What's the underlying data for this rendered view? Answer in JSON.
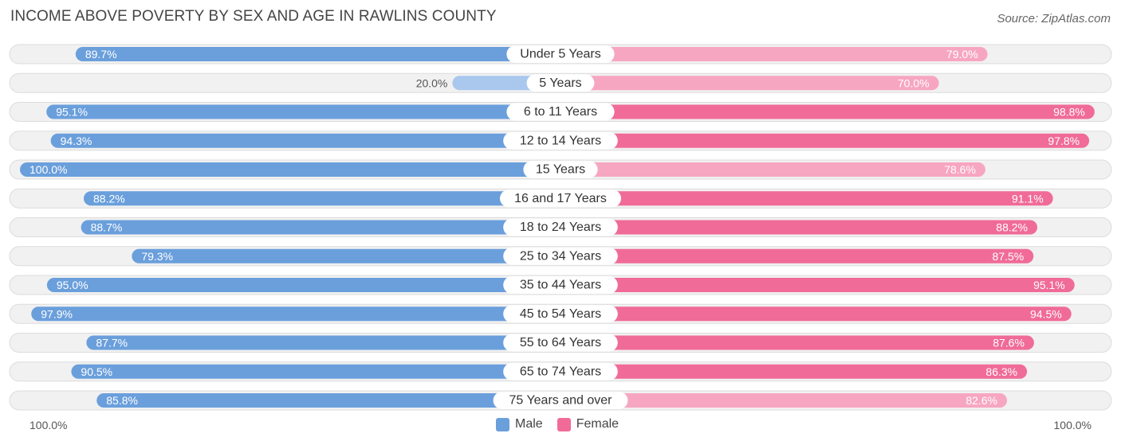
{
  "title": "INCOME ABOVE POVERTY BY SEX AND AGE IN RAWLINS COUNTY",
  "source": "Source: ZipAtlas.com",
  "axis": {
    "left_label": "100.0%",
    "right_label": "100.0%"
  },
  "legend": [
    {
      "label": "Male",
      "color": "#6a9fdc"
    },
    {
      "label": "Female",
      "color": "#f06b98"
    }
  ],
  "colors": {
    "male_strong": "#6a9fdc",
    "male_light": "#aac8ee",
    "female_strong": "#f06b98",
    "female_light": "#f7a6c2",
    "track": "#f1f1f1",
    "track_border": "#dcdcdc"
  },
  "chart_data": {
    "type": "bar",
    "orientation": "horizontal-diverging",
    "title": "INCOME ABOVE POVERTY BY SEX AND AGE IN RAWLINS COUNTY",
    "xlim": [
      0,
      100
    ],
    "unit": "%",
    "categories": [
      "Under 5 Years",
      "5 Years",
      "6 to 11 Years",
      "12 to 14 Years",
      "15 Years",
      "16 and 17 Years",
      "18 to 24 Years",
      "25 to 34 Years",
      "35 to 44 Years",
      "45 to 54 Years",
      "55 to 64 Years",
      "65 to 74 Years",
      "75 Years and over"
    ],
    "series": [
      {
        "name": "Male",
        "values": [
          89.7,
          20.0,
          95.1,
          94.3,
          100.0,
          88.2,
          88.7,
          79.3,
          95.0,
          97.9,
          87.7,
          90.5,
          85.8
        ],
        "labels": [
          "89.7%",
          "20.0%",
          "95.1%",
          "94.3%",
          "100.0%",
          "88.2%",
          "88.7%",
          "79.3%",
          "95.0%",
          "97.9%",
          "87.7%",
          "90.5%",
          "85.8%"
        ]
      },
      {
        "name": "Female",
        "values": [
          79.0,
          70.0,
          98.8,
          97.8,
          78.6,
          91.1,
          88.2,
          87.5,
          95.1,
          94.5,
          87.6,
          86.3,
          82.6
        ],
        "labels": [
          "79.0%",
          "70.0%",
          "98.8%",
          "97.8%",
          "78.6%",
          "91.1%",
          "88.2%",
          "87.5%",
          "95.1%",
          "94.5%",
          "87.6%",
          "86.3%",
          "82.6%"
        ]
      }
    ]
  }
}
